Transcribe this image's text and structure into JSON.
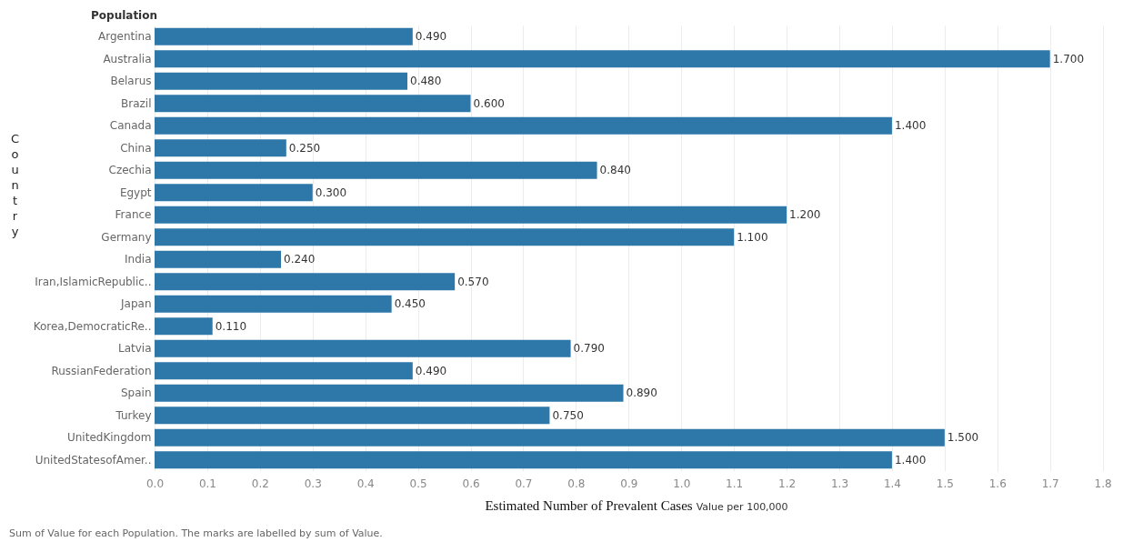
{
  "chart_data": {
    "type": "bar",
    "orientation": "horizontal",
    "xlabel": "Estimated Number of Prevalent Cases",
    "ylabel": "Country",
    "categories": [
      "Argentina",
      "Australia",
      "Belarus",
      "Brazil",
      "Canada",
      "China",
      "Czechia",
      "Egypt",
      "France",
      "Germany",
      "India",
      "Iran,IslamicRepublic..",
      "Japan",
      "Korea,DemocraticRe..",
      "Latvia",
      "RussianFederation",
      "Spain",
      "Turkey",
      "UnitedKingdom",
      "UnitedStatesofAmer.."
    ],
    "values": [
      0.49,
      1.7,
      0.48,
      0.6,
      1.4,
      0.25,
      0.84,
      0.3,
      1.2,
      1.1,
      0.24,
      0.57,
      0.45,
      0.11,
      0.79,
      0.49,
      0.89,
      0.75,
      1.5,
      1.4
    ],
    "value_labels": [
      "0.490",
      "1.700",
      "0.480",
      "0.600",
      "1.400",
      "0.250",
      "0.840",
      "0.300",
      "1.200",
      "1.100",
      "0.240",
      "0.570",
      "0.450",
      "0.110",
      "0.790",
      "0.490",
      "0.890",
      "0.750",
      "1.500",
      "1.400"
    ],
    "color": "#2e77a9",
    "xlim": [
      0,
      1.83
    ],
    "xticks": [
      {
        "value": 0,
        "label": "0.0"
      },
      0.1,
      0.2,
      0.3,
      0.4,
      0.5,
      0.6,
      0.7,
      0.8,
      0.9,
      {
        "value": 1,
        "label": "1.0"
      },
      1.1,
      1.2,
      1.3,
      1.4,
      1.5,
      1.6,
      1.7,
      1.8
    ],
    "grid": "x",
    "annotations": [
      "Population",
      "Value per 100,000",
      "Sum of Value for each Population.  The marks are labelled by sum of Value."
    ]
  }
}
